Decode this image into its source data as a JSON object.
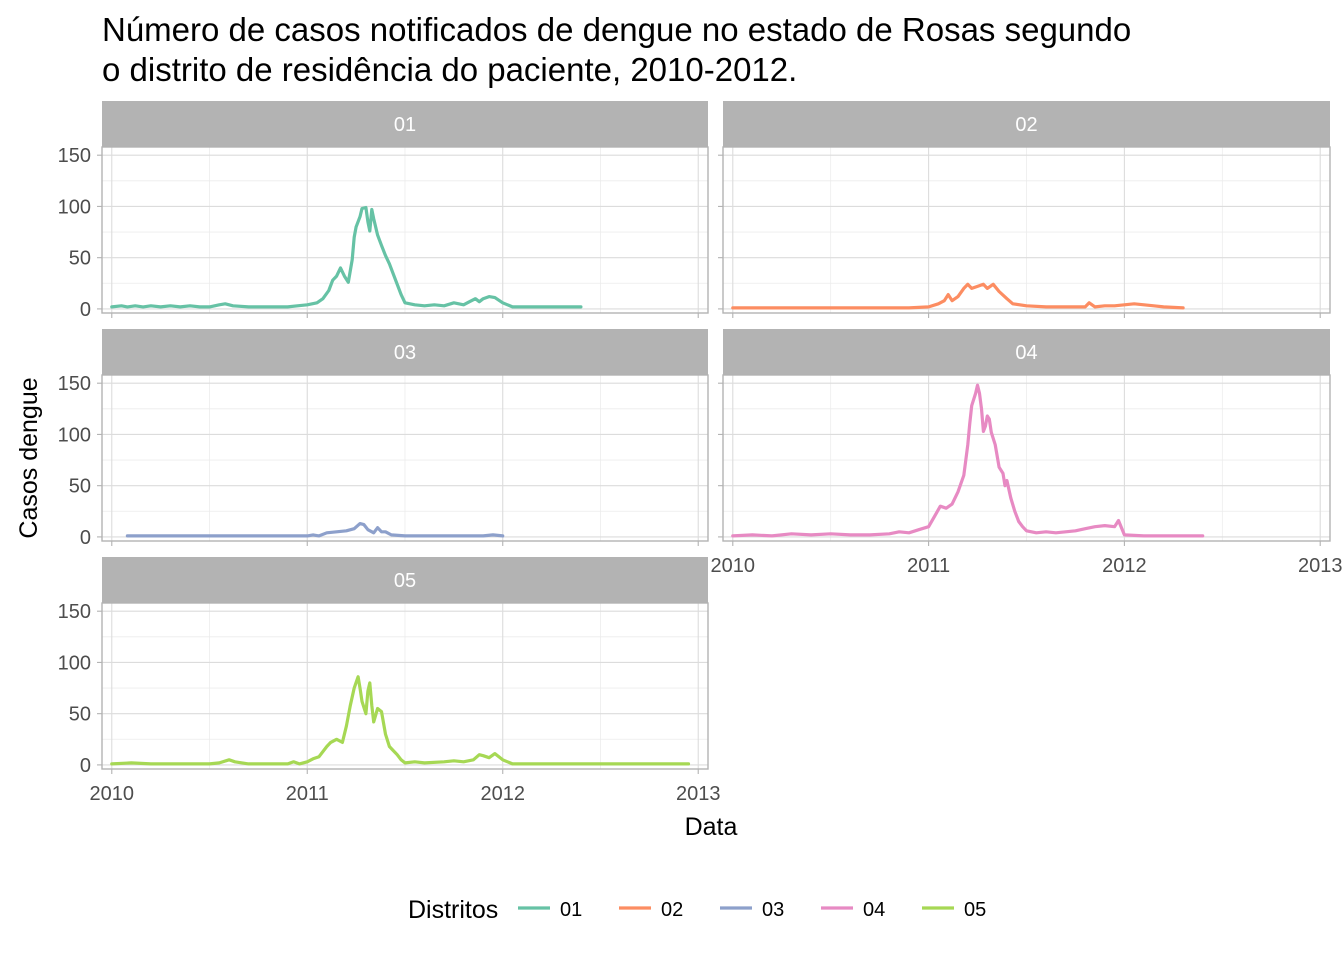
{
  "chart_data": {
    "type": "line",
    "title": "Número de casos notificados de dengue no estado de Rosas segundo\no distrito de residência do paciente, 2010-2012.",
    "xlabel": "Data",
    "ylabel": "Casos dengue",
    "x_ticks": [
      "2010",
      "2011",
      "2012",
      "2013"
    ],
    "x_lim": [
      2009.95,
      2013.05
    ],
    "y_ticks": [
      "0",
      "50",
      "100",
      "150"
    ],
    "y_lim": [
      -4,
      158
    ],
    "grid": true,
    "legend": {
      "title": "Distritos",
      "position": "bottom"
    },
    "facets": [
      "01",
      "02",
      "03",
      "04",
      "05"
    ],
    "series": [
      {
        "name": "01",
        "color": "#66c2a5",
        "x_start": 2010.0,
        "x_end": 2012.4,
        "points": [
          [
            2010.0,
            2
          ],
          [
            2010.05,
            3
          ],
          [
            2010.08,
            2
          ],
          [
            2010.12,
            3
          ],
          [
            2010.16,
            2
          ],
          [
            2010.2,
            3
          ],
          [
            2010.25,
            2
          ],
          [
            2010.3,
            3
          ],
          [
            2010.35,
            2
          ],
          [
            2010.4,
            3
          ],
          [
            2010.45,
            2
          ],
          [
            2010.5,
            2
          ],
          [
            2010.55,
            4
          ],
          [
            2010.58,
            5
          ],
          [
            2010.62,
            3
          ],
          [
            2010.7,
            2
          ],
          [
            2010.8,
            2
          ],
          [
            2010.9,
            2
          ],
          [
            2010.95,
            3
          ],
          [
            2011.0,
            4
          ],
          [
            2011.05,
            6
          ],
          [
            2011.08,
            10
          ],
          [
            2011.11,
            18
          ],
          [
            2011.13,
            28
          ],
          [
            2011.15,
            32
          ],
          [
            2011.17,
            40
          ],
          [
            2011.19,
            32
          ],
          [
            2011.21,
            26
          ],
          [
            2011.23,
            48
          ],
          [
            2011.24,
            70
          ],
          [
            2011.25,
            80
          ],
          [
            2011.27,
            90
          ],
          [
            2011.28,
            98
          ],
          [
            2011.3,
            99
          ],
          [
            2011.31,
            85
          ],
          [
            2011.32,
            76
          ],
          [
            2011.33,
            97
          ],
          [
            2011.34,
            88
          ],
          [
            2011.36,
            72
          ],
          [
            2011.38,
            62
          ],
          [
            2011.4,
            52
          ],
          [
            2011.42,
            44
          ],
          [
            2011.44,
            34
          ],
          [
            2011.46,
            24
          ],
          [
            2011.48,
            14
          ],
          [
            2011.5,
            6
          ],
          [
            2011.55,
            4
          ],
          [
            2011.6,
            3
          ],
          [
            2011.65,
            4
          ],
          [
            2011.7,
            3
          ],
          [
            2011.75,
            6
          ],
          [
            2011.8,
            4
          ],
          [
            2011.83,
            7
          ],
          [
            2011.86,
            10
          ],
          [
            2011.88,
            7
          ],
          [
            2011.9,
            10
          ],
          [
            2011.93,
            12
          ],
          [
            2011.96,
            11
          ],
          [
            2012.0,
            6
          ],
          [
            2012.05,
            2
          ],
          [
            2012.1,
            2
          ],
          [
            2012.2,
            2
          ],
          [
            2012.3,
            2
          ],
          [
            2012.4,
            2
          ]
        ]
      },
      {
        "name": "02",
        "color": "#fc8d62",
        "x_start": 2010.0,
        "x_end": 2012.3,
        "points": [
          [
            2010.0,
            1
          ],
          [
            2010.5,
            1
          ],
          [
            2010.9,
            1
          ],
          [
            2011.0,
            2
          ],
          [
            2011.05,
            5
          ],
          [
            2011.08,
            8
          ],
          [
            2011.1,
            14
          ],
          [
            2011.12,
            8
          ],
          [
            2011.15,
            12
          ],
          [
            2011.18,
            20
          ],
          [
            2011.2,
            24
          ],
          [
            2011.22,
            20
          ],
          [
            2011.25,
            22
          ],
          [
            2011.28,
            24
          ],
          [
            2011.3,
            20
          ],
          [
            2011.33,
            24
          ],
          [
            2011.36,
            17
          ],
          [
            2011.4,
            10
          ],
          [
            2011.43,
            5
          ],
          [
            2011.5,
            3
          ],
          [
            2011.6,
            2
          ],
          [
            2011.7,
            2
          ],
          [
            2011.8,
            2
          ],
          [
            2011.82,
            6
          ],
          [
            2011.85,
            2
          ],
          [
            2011.9,
            3
          ],
          [
            2011.95,
            3
          ],
          [
            2012.0,
            4
          ],
          [
            2012.05,
            5
          ],
          [
            2012.1,
            4
          ],
          [
            2012.15,
            3
          ],
          [
            2012.2,
            2
          ],
          [
            2012.3,
            1
          ]
        ]
      },
      {
        "name": "03",
        "color": "#8da0cb",
        "x_start": 2010.08,
        "x_end": 2012.0,
        "points": [
          [
            2010.08,
            1
          ],
          [
            2010.5,
            1
          ],
          [
            2011.0,
            1
          ],
          [
            2011.03,
            2
          ],
          [
            2011.06,
            1
          ],
          [
            2011.1,
            4
          ],
          [
            2011.15,
            5
          ],
          [
            2011.2,
            6
          ],
          [
            2011.24,
            8
          ],
          [
            2011.27,
            13
          ],
          [
            2011.29,
            12
          ],
          [
            2011.31,
            7
          ],
          [
            2011.34,
            4
          ],
          [
            2011.36,
            9
          ],
          [
            2011.38,
            5
          ],
          [
            2011.4,
            5
          ],
          [
            2011.43,
            2
          ],
          [
            2011.5,
            1
          ],
          [
            2011.7,
            1
          ],
          [
            2011.8,
            1
          ],
          [
            2011.9,
            1
          ],
          [
            2011.95,
            2
          ],
          [
            2012.0,
            1
          ]
        ]
      },
      {
        "name": "04",
        "color": "#e78ac3",
        "x_start": 2010.0,
        "x_end": 2012.4,
        "points": [
          [
            2010.0,
            1
          ],
          [
            2010.1,
            2
          ],
          [
            2010.2,
            1
          ],
          [
            2010.3,
            3
          ],
          [
            2010.4,
            2
          ],
          [
            2010.5,
            3
          ],
          [
            2010.6,
            2
          ],
          [
            2010.7,
            2
          ],
          [
            2010.8,
            3
          ],
          [
            2010.85,
            5
          ],
          [
            2010.9,
            4
          ],
          [
            2010.95,
            7
          ],
          [
            2011.0,
            10
          ],
          [
            2011.03,
            20
          ],
          [
            2011.06,
            30
          ],
          [
            2011.09,
            28
          ],
          [
            2011.12,
            32
          ],
          [
            2011.15,
            44
          ],
          [
            2011.18,
            60
          ],
          [
            2011.2,
            90
          ],
          [
            2011.21,
            110
          ],
          [
            2011.22,
            128
          ],
          [
            2011.24,
            140
          ],
          [
            2011.25,
            148
          ],
          [
            2011.26,
            140
          ],
          [
            2011.27,
            125
          ],
          [
            2011.28,
            103
          ],
          [
            2011.29,
            108
          ],
          [
            2011.3,
            118
          ],
          [
            2011.31,
            115
          ],
          [
            2011.32,
            102
          ],
          [
            2011.34,
            90
          ],
          [
            2011.36,
            68
          ],
          [
            2011.38,
            62
          ],
          [
            2011.39,
            50
          ],
          [
            2011.4,
            55
          ],
          [
            2011.42,
            38
          ],
          [
            2011.44,
            25
          ],
          [
            2011.46,
            15
          ],
          [
            2011.48,
            10
          ],
          [
            2011.5,
            6
          ],
          [
            2011.55,
            4
          ],
          [
            2011.6,
            5
          ],
          [
            2011.65,
            4
          ],
          [
            2011.7,
            5
          ],
          [
            2011.75,
            6
          ],
          [
            2011.8,
            8
          ],
          [
            2011.85,
            10
          ],
          [
            2011.9,
            11
          ],
          [
            2011.95,
            10
          ],
          [
            2011.97,
            16
          ],
          [
            2012.0,
            2
          ],
          [
            2012.1,
            1
          ],
          [
            2012.2,
            1
          ],
          [
            2012.3,
            1
          ],
          [
            2012.4,
            1
          ]
        ]
      },
      {
        "name": "05",
        "color": "#a6d854",
        "x_start": 2010.0,
        "x_end": 2012.95,
        "points": [
          [
            2010.0,
            1
          ],
          [
            2010.1,
            2
          ],
          [
            2010.2,
            1
          ],
          [
            2010.3,
            1
          ],
          [
            2010.4,
            1
          ],
          [
            2010.5,
            1
          ],
          [
            2010.55,
            2
          ],
          [
            2010.6,
            5
          ],
          [
            2010.63,
            3
          ],
          [
            2010.7,
            1
          ],
          [
            2010.8,
            1
          ],
          [
            2010.9,
            1
          ],
          [
            2010.93,
            3
          ],
          [
            2010.96,
            1
          ],
          [
            2011.0,
            3
          ],
          [
            2011.03,
            6
          ],
          [
            2011.06,
            8
          ],
          [
            2011.1,
            18
          ],
          [
            2011.12,
            22
          ],
          [
            2011.15,
            25
          ],
          [
            2011.18,
            22
          ],
          [
            2011.2,
            38
          ],
          [
            2011.22,
            58
          ],
          [
            2011.24,
            75
          ],
          [
            2011.26,
            86
          ],
          [
            2011.27,
            75
          ],
          [
            2011.28,
            62
          ],
          [
            2011.3,
            50
          ],
          [
            2011.31,
            72
          ],
          [
            2011.32,
            80
          ],
          [
            2011.33,
            58
          ],
          [
            2011.34,
            42
          ],
          [
            2011.36,
            55
          ],
          [
            2011.38,
            52
          ],
          [
            2011.4,
            30
          ],
          [
            2011.42,
            18
          ],
          [
            2011.44,
            14
          ],
          [
            2011.46,
            10
          ],
          [
            2011.48,
            5
          ],
          [
            2011.5,
            2
          ],
          [
            2011.55,
            3
          ],
          [
            2011.6,
            2
          ],
          [
            2011.7,
            3
          ],
          [
            2011.75,
            4
          ],
          [
            2011.8,
            3
          ],
          [
            2011.85,
            5
          ],
          [
            2011.88,
            10
          ],
          [
            2011.9,
            9
          ],
          [
            2011.93,
            7
          ],
          [
            2011.96,
            11
          ],
          [
            2012.0,
            5
          ],
          [
            2012.05,
            1
          ],
          [
            2012.3,
            1
          ],
          [
            2012.6,
            1
          ],
          [
            2012.95,
            1
          ]
        ]
      }
    ]
  }
}
